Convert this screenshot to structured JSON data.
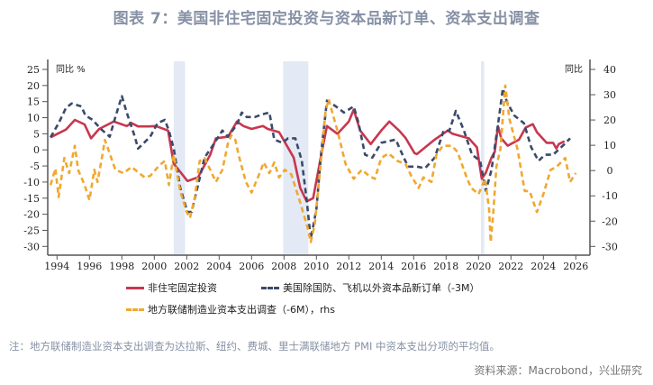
{
  "title": "图表 7：美国非住宅固定投资与资本品新订单、资本支出调查",
  "note": "注：地方联储制造业资本支出调查为达拉斯、纽约、费城、里士满联储地方 PMI 中资本支出分项的平均值。",
  "source": "资料来源：Macrobond，兴业研究",
  "chart_data": {
    "type": "line",
    "left_axis": {
      "label": "同比 %",
      "ylim": [
        -30,
        25
      ],
      "ticks": [
        "25",
        "20",
        "15",
        "10",
        "5",
        "0",
        "-5",
        "-10",
        "-15",
        "-20",
        "-25",
        "-30"
      ]
    },
    "right_axis": {
      "label": "同比",
      "ylim": [
        -30,
        40
      ],
      "ticks": [
        "40",
        "30",
        "20",
        "10",
        "0",
        "-10",
        "-20",
        "-30"
      ]
    },
    "x_axis": {
      "xlim": [
        1993.4,
        2027.0
      ],
      "ticks": [
        "1994",
        "1996",
        "1998",
        "2000",
        "2002",
        "2004",
        "2006",
        "2008",
        "2010",
        "2012",
        "2014",
        "2016",
        "2018",
        "2020",
        "2022",
        "2024",
        "2026"
      ]
    },
    "recessions": [
      [
        2001.2,
        2001.9
      ],
      [
        2007.95,
        2009.5
      ],
      [
        2020.15,
        2020.35
      ]
    ],
    "recession_color": "#e3eaf5",
    "series": [
      {
        "name": "非住宅固定投资",
        "axis": "left",
        "style": "solid",
        "color": "#c8374f",
        "points": [
          [
            1993.6,
            3.9
          ],
          [
            1994.55,
            6.3
          ],
          [
            1995.1,
            9.3
          ],
          [
            1995.7,
            7.9
          ],
          [
            1996.1,
            3.6
          ],
          [
            1996.6,
            6.5
          ],
          [
            1997.5,
            8.8
          ],
          [
            1998.3,
            7.4
          ],
          [
            1998.6,
            8.3
          ],
          [
            1999.0,
            7.3
          ],
          [
            1999.7,
            7.3
          ],
          [
            2000.1,
            7.4
          ],
          [
            2000.85,
            6.0
          ],
          [
            2001.2,
            -4.3
          ],
          [
            2002.05,
            -9.7
          ],
          [
            2002.7,
            -8.5
          ],
          [
            2003.45,
            -1.5
          ],
          [
            2003.8,
            3.6
          ],
          [
            2004.55,
            4.1
          ],
          [
            2005.1,
            8.8
          ],
          [
            2005.5,
            7.4
          ],
          [
            2006.0,
            6.5
          ],
          [
            2006.7,
            7.4
          ],
          [
            2007.0,
            6.5
          ],
          [
            2007.7,
            5.5
          ],
          [
            2008.6,
            -2.4
          ],
          [
            2009.0,
            -11.8
          ],
          [
            2009.4,
            -16
          ],
          [
            2009.8,
            -15
          ],
          [
            2010.3,
            -1.5
          ],
          [
            2010.65,
            7.4
          ],
          [
            2011.3,
            5
          ],
          [
            2012.0,
            8.8
          ],
          [
            2012.3,
            12.5
          ],
          [
            2012.7,
            6
          ],
          [
            2013.35,
            1.8
          ],
          [
            2014.0,
            6
          ],
          [
            2014.5,
            8.8
          ],
          [
            2015.1,
            6
          ],
          [
            2015.5,
            3.7
          ],
          [
            2016.05,
            -1
          ],
          [
            2016.2,
            -1.3
          ],
          [
            2017.3,
            3.2
          ],
          [
            2018.1,
            6
          ],
          [
            2018.4,
            5
          ],
          [
            2019.4,
            3.6
          ],
          [
            2019.9,
            0.8
          ],
          [
            2020.2,
            -9
          ],
          [
            2020.45,
            -7.1
          ],
          [
            2020.8,
            -2.4
          ],
          [
            2021.0,
            -0.6
          ],
          [
            2021.2,
            7.4
          ],
          [
            2021.4,
            3.6
          ],
          [
            2021.8,
            1.3
          ],
          [
            2022.5,
            3.2
          ],
          [
            2022.9,
            6.9
          ],
          [
            2023.35,
            8
          ],
          [
            2023.6,
            5.5
          ],
          [
            2024.2,
            2.2
          ],
          [
            2024.6,
            2.2
          ],
          [
            2024.8,
            0.4
          ],
          [
            2024.95,
            1.8
          ],
          [
            2025.3,
            2.7
          ]
        ]
      },
      {
        "name": "美国除国防、飞机以外资本品新订单（-3M）",
        "axis": "left",
        "style": "dashed",
        "color": "#3b4a6b",
        "points": [
          [
            1993.6,
            3.9
          ],
          [
            1994.1,
            8.3
          ],
          [
            1994.55,
            13
          ],
          [
            1994.9,
            14.4
          ],
          [
            1995.5,
            13.5
          ],
          [
            1995.75,
            10.7
          ],
          [
            1996.2,
            9.3
          ],
          [
            1996.7,
            6.5
          ],
          [
            1997.25,
            4.1
          ],
          [
            1997.6,
            10.2
          ],
          [
            1998.0,
            16.7
          ],
          [
            1998.3,
            11.6
          ],
          [
            1998.8,
            4.1
          ],
          [
            1999.0,
            0.4
          ],
          [
            1999.75,
            4.1
          ],
          [
            2000.2,
            8.3
          ],
          [
            2000.65,
            9.3
          ],
          [
            2000.9,
            6
          ],
          [
            2001.2,
            0.4
          ],
          [
            2001.6,
            -11.8
          ],
          [
            2002.05,
            -19.3
          ],
          [
            2002.3,
            -19.3
          ],
          [
            2002.7,
            -10.9
          ],
          [
            2003.1,
            -2.4
          ],
          [
            2003.6,
            1.3
          ],
          [
            2004.2,
            6
          ],
          [
            2004.55,
            4.1
          ],
          [
            2005.1,
            7.9
          ],
          [
            2005.4,
            11.6
          ],
          [
            2005.7,
            10.2
          ],
          [
            2006.2,
            10.2
          ],
          [
            2006.7,
            11.1
          ],
          [
            2007.1,
            11.6
          ],
          [
            2007.4,
            3.2
          ],
          [
            2007.9,
            2.2
          ],
          [
            2008.25,
            3.6
          ],
          [
            2008.7,
            3.6
          ],
          [
            2009.1,
            -3.4
          ],
          [
            2009.4,
            -15.6
          ],
          [
            2009.65,
            -27.7
          ],
          [
            2010.0,
            -18.4
          ],
          [
            2010.3,
            -0.6
          ],
          [
            2010.65,
            15.3
          ],
          [
            2011.2,
            13.5
          ],
          [
            2011.7,
            11.6
          ],
          [
            2012.3,
            13.5
          ],
          [
            2012.6,
            8.3
          ],
          [
            2013.0,
            -1.5
          ],
          [
            2013.45,
            -2.4
          ],
          [
            2014.0,
            2.2
          ],
          [
            2014.9,
            3.2
          ],
          [
            2015.1,
            0.8
          ],
          [
            2015.65,
            -5.2
          ],
          [
            2016.2,
            -5.2
          ],
          [
            2016.7,
            -5.7
          ],
          [
            2017.3,
            -2.4
          ],
          [
            2017.85,
            6
          ],
          [
            2018.2,
            6
          ],
          [
            2018.6,
            12.1
          ],
          [
            2019.1,
            6
          ],
          [
            2019.6,
            -1.5
          ],
          [
            2020.1,
            -3.4
          ],
          [
            2020.45,
            -12.7
          ],
          [
            2020.8,
            -6.2
          ],
          [
            2021.25,
            9.7
          ],
          [
            2021.5,
            19.1
          ],
          [
            2021.75,
            14.9
          ],
          [
            2022.2,
            10.7
          ],
          [
            2022.8,
            8.3
          ],
          [
            2023.25,
            0.8
          ],
          [
            2023.7,
            -3.4
          ],
          [
            2024.1,
            -1.5
          ],
          [
            2024.6,
            -1.5
          ],
          [
            2025.2,
            1.3
          ],
          [
            2025.65,
            3.6
          ]
        ]
      },
      {
        "name": "地方联储制造业资本支出调查（-6M），rhs",
        "axis": "right",
        "style": "dashed",
        "color": "#f0a830",
        "points": [
          [
            1993.6,
            -5.7
          ],
          [
            1993.9,
            0.8
          ],
          [
            1994.1,
            -10.5
          ],
          [
            1994.45,
            5
          ],
          [
            1994.75,
            -1
          ],
          [
            1995.1,
            9.8
          ],
          [
            1995.3,
            0.3
          ],
          [
            1995.7,
            -5.7
          ],
          [
            1996.0,
            -11.7
          ],
          [
            1996.3,
            0.3
          ],
          [
            1996.5,
            -4.5
          ],
          [
            1996.8,
            6.2
          ],
          [
            1996.95,
            12.1
          ],
          [
            1997.15,
            8.6
          ],
          [
            1997.6,
            0.3
          ],
          [
            1998.1,
            -1
          ],
          [
            1998.6,
            1.4
          ],
          [
            1999.4,
            -2.7
          ],
          [
            1999.75,
            -2.1
          ],
          [
            2000.3,
            2
          ],
          [
            2000.65,
            3.8
          ],
          [
            2000.9,
            -5.7
          ],
          [
            2001.2,
            6.2
          ],
          [
            2001.6,
            -8.1
          ],
          [
            2002.0,
            -16.4
          ],
          [
            2002.2,
            -18.8
          ],
          [
            2002.5,
            -10.5
          ],
          [
            2002.8,
            3.8
          ],
          [
            2003.1,
            5
          ],
          [
            2003.45,
            0.3
          ],
          [
            2003.8,
            -4.5
          ],
          [
            2004.2,
            0.3
          ],
          [
            2004.55,
            11
          ],
          [
            2004.75,
            13.9
          ],
          [
            2005.0,
            12.1
          ],
          [
            2005.2,
            6.2
          ],
          [
            2005.65,
            -4.5
          ],
          [
            2006.0,
            -8.7
          ],
          [
            2006.5,
            -1
          ],
          [
            2006.75,
            3.2
          ],
          [
            2007.1,
            -1
          ],
          [
            2007.4,
            3.2
          ],
          [
            2007.7,
            -2.7
          ],
          [
            2008.05,
            0.3
          ],
          [
            2008.45,
            -1.5
          ],
          [
            2008.9,
            -10.5
          ],
          [
            2009.45,
            -22.4
          ],
          [
            2009.65,
            -28.3
          ],
          [
            2009.9,
            -21.2
          ],
          [
            2010.3,
            5
          ],
          [
            2010.55,
            22.9
          ],
          [
            2010.75,
            28.2
          ],
          [
            2011.3,
            15.7
          ],
          [
            2011.8,
            2.6
          ],
          [
            2012.3,
            -3.3
          ],
          [
            2012.8,
            0.3
          ],
          [
            2013.25,
            -2.1
          ],
          [
            2013.6,
            -3.3
          ],
          [
            2014.0,
            5
          ],
          [
            2014.45,
            6.8
          ],
          [
            2015.0,
            3.8
          ],
          [
            2015.5,
            2.6
          ],
          [
            2015.85,
            -2.1
          ],
          [
            2016.3,
            -6.9
          ],
          [
            2016.6,
            -2.7
          ],
          [
            2017.1,
            -4.5
          ],
          [
            2017.4,
            6.2
          ],
          [
            2017.8,
            9.8
          ],
          [
            2018.35,
            9.8
          ],
          [
            2018.7,
            7.4
          ],
          [
            2019.3,
            -3.3
          ],
          [
            2019.55,
            -6.9
          ],
          [
            2020.0,
            -9.3
          ],
          [
            2020.4,
            -3.3
          ],
          [
            2020.65,
            -15.2
          ],
          [
            2020.75,
            -28.3
          ],
          [
            2020.9,
            -17.6
          ],
          [
            2021.1,
            1.4
          ],
          [
            2021.35,
            8.6
          ],
          [
            2021.65,
            33.6
          ],
          [
            2021.9,
            20.5
          ],
          [
            2022.4,
            8.6
          ],
          [
            2022.85,
            -8.1
          ],
          [
            2023.15,
            -8.1
          ],
          [
            2023.6,
            -16.4
          ],
          [
            2024.0,
            -9.3
          ],
          [
            2024.45,
            0.3
          ],
          [
            2024.8,
            1.4
          ],
          [
            2025.35,
            5
          ],
          [
            2025.65,
            -4.5
          ],
          [
            2026.0,
            -1
          ]
        ]
      }
    ]
  }
}
